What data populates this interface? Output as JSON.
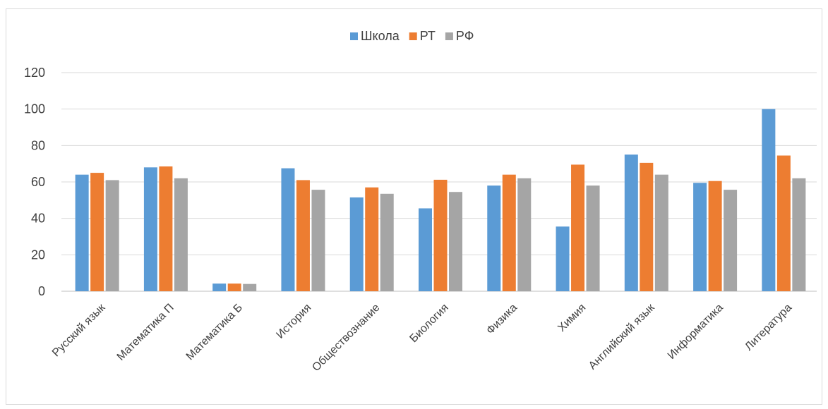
{
  "chart_data": {
    "type": "bar",
    "categories": [
      "Русский язык",
      "Математика П",
      "Математика Б",
      "История",
      "Обществознание",
      "Биология",
      "Физика",
      "Химия",
      "Английский язык",
      "Информатика",
      "Литература"
    ],
    "series": [
      {
        "name": "Школа",
        "color": "#5b9bd5",
        "values": [
          64,
          68,
          4.2,
          67.5,
          51.5,
          45.5,
          58,
          35.5,
          75,
          59.5,
          100
        ]
      },
      {
        "name": "РТ",
        "color": "#ed7d31",
        "values": [
          65,
          68.5,
          4.2,
          61,
          57,
          61.2,
          64,
          69.5,
          70.5,
          60.5,
          74.5
        ]
      },
      {
        "name": "РФ",
        "color": "#a5a5a5",
        "values": [
          61,
          62,
          4,
          55.7,
          53.5,
          54.5,
          62,
          58,
          64,
          55.7,
          62
        ]
      }
    ],
    "ylim": [
      0,
      120
    ],
    "yticks": [
      "0",
      "20",
      "40",
      "60",
      "80",
      "100",
      "120"
    ],
    "grid": true,
    "legend": "top-center"
  }
}
